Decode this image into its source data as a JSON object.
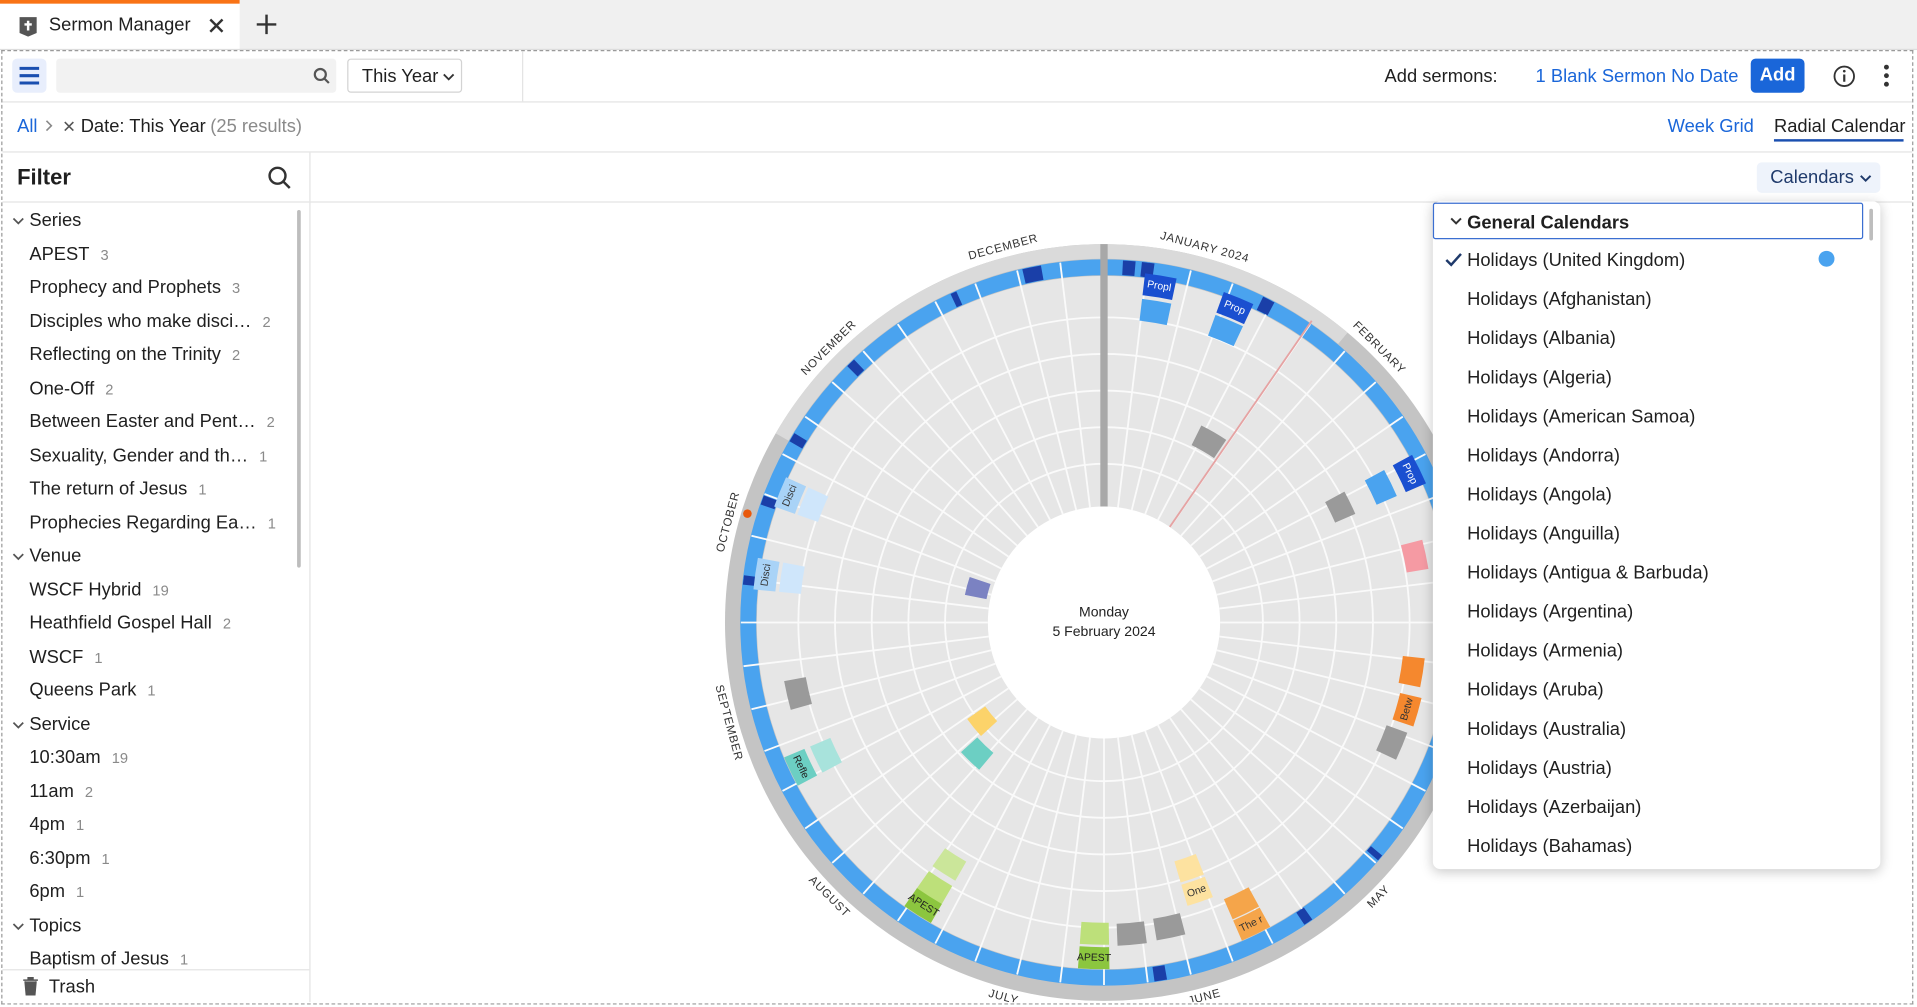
{
  "tab": {
    "title": "Sermon Manager"
  },
  "toolbar": {
    "date_filter": "This Year",
    "add_label": "Add sermons:",
    "add_option": "1 Blank Sermon No Date",
    "add_button": "Add"
  },
  "breadcrumb": {
    "root": "All",
    "filter": "Date: This Year",
    "results": "(25 results)"
  },
  "views": [
    "Week Grid",
    "Radial Calendar"
  ],
  "filter": {
    "title": "Filter",
    "groups": [
      {
        "name": "Series",
        "items": [
          {
            "label": "APEST",
            "count": 3
          },
          {
            "label": "Prophecy and Prophets",
            "count": 3
          },
          {
            "label": "Disciples who make disci…",
            "count": 2
          },
          {
            "label": "Reflecting on the Trinity",
            "count": 2
          },
          {
            "label": "One-Off",
            "count": 2
          },
          {
            "label": "Between Easter and Pent…",
            "count": 2
          },
          {
            "label": "Sexuality, Gender and th…",
            "count": 1
          },
          {
            "label": "The return of Jesus",
            "count": 1
          },
          {
            "label": "Prophecies Regarding Ea…",
            "count": 1
          }
        ]
      },
      {
        "name": "Venue",
        "items": [
          {
            "label": "WSCF Hybrid",
            "count": 19
          },
          {
            "label": "Heathfield Gospel Hall",
            "count": 2
          },
          {
            "label": "WSCF",
            "count": 1
          },
          {
            "label": "Queens Park",
            "count": 1
          }
        ]
      },
      {
        "name": "Service",
        "items": [
          {
            "label": "10:30am",
            "count": 19
          },
          {
            "label": "11am",
            "count": 2
          },
          {
            "label": "4pm",
            "count": 1
          },
          {
            "label": "6:30pm",
            "count": 1
          },
          {
            "label": "6pm",
            "count": 1
          }
        ]
      },
      {
        "name": "Topics",
        "items": [
          {
            "label": "Baptism of Jesus",
            "count": 1
          }
        ]
      }
    ],
    "trash": "Trash"
  },
  "calendar": {
    "button": "Calendars",
    "center_day": "Monday",
    "center_date": "5 February 2024",
    "months": [
      "JANUARY 2024",
      "FEBRUARY",
      "MAY",
      "JUNE",
      "JULY",
      "AUGUST",
      "SEPTEMBER",
      "OCTOBER",
      "NOVEMBER",
      "DECEMBER"
    ],
    "events": [
      "Propl",
      "Prop",
      "Prop",
      "Betw",
      "The r",
      "One",
      "APEST",
      "APEST",
      "Refle",
      "Disci",
      "Disci"
    ]
  },
  "dropdown": {
    "section": "General Calendars",
    "items": [
      "Holidays (United Kingdom)",
      "Holidays (Afghanistan)",
      "Holidays (Albania)",
      "Holidays (Algeria)",
      "Holidays (American Samoa)",
      "Holidays (Andorra)",
      "Holidays (Angola)",
      "Holidays (Anguilla)",
      "Holidays (Antigua & Barbuda)",
      "Holidays (Argentina)",
      "Holidays (Armenia)",
      "Holidays (Aruba)",
      "Holidays (Australia)",
      "Holidays (Austria)",
      "Holidays (Azerbaijan)",
      "Holidays (Bahamas)"
    ]
  }
}
